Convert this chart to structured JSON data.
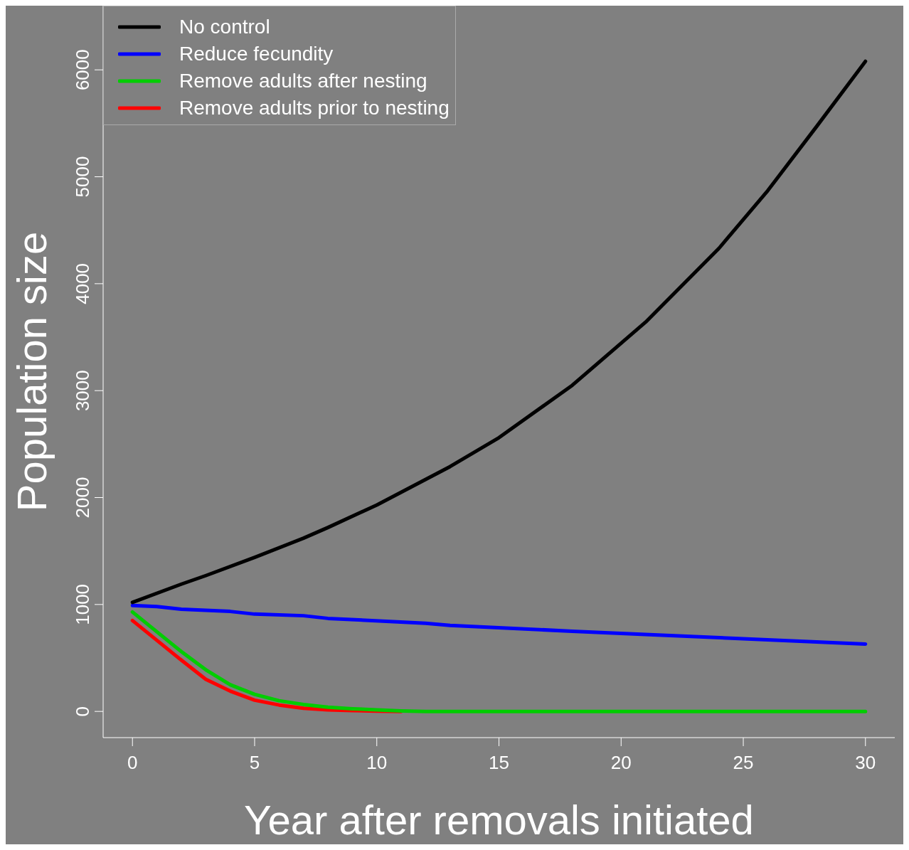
{
  "chart_data": {
    "type": "line",
    "xlabel": "Year after removals initiated",
    "ylabel": "Population size",
    "xlim": [
      -1.2,
      31.2
    ],
    "xticks": [
      0,
      5,
      10,
      15,
      20,
      25,
      30
    ],
    "ylim": [
      -245,
      6600
    ],
    "yticks": [
      0,
      1000,
      2000,
      3000,
      4000,
      5000,
      6000
    ],
    "legend": "top left",
    "grid": false,
    "marker": "none",
    "line_style": "solid",
    "series": [
      {
        "name": "No control",
        "color": "#000000",
        "x": [
          0,
          2,
          3,
          5,
          7,
          8,
          10,
          12,
          13,
          15,
          18,
          21,
          24,
          26,
          28,
          30
        ],
        "values": [
          1020,
          1190,
          1270,
          1440,
          1620,
          1720,
          1930,
          2170,
          2290,
          2560,
          3050,
          3640,
          4330,
          4870,
          5470,
          6080
        ]
      },
      {
        "name": "Reduce fecundity",
        "color": "#0000ff",
        "x": [
          0,
          1,
          2,
          4,
          5,
          7,
          8,
          12,
          13,
          18,
          21,
          30
        ],
        "values": [
          990,
          980,
          955,
          935,
          910,
          895,
          870,
          825,
          805,
          750,
          720,
          630
        ]
      },
      {
        "name": "Remove adults after nesting",
        "color": "#00cd00",
        "x": [
          0,
          2,
          3,
          4,
          5,
          6,
          7,
          8,
          9,
          10,
          11,
          12,
          30
        ],
        "values": [
          930,
          560,
          390,
          250,
          160,
          100,
          65,
          40,
          25,
          15,
          5,
          0,
          0
        ]
      },
      {
        "name": "Remove adults prior to nesting",
        "color": "#ff0000",
        "x": [
          0,
          2,
          3,
          4,
          5,
          6,
          7,
          8,
          9,
          10,
          11
        ],
        "values": [
          850,
          480,
          300,
          190,
          105,
          60,
          30,
          15,
          8,
          3,
          0
        ]
      }
    ]
  }
}
